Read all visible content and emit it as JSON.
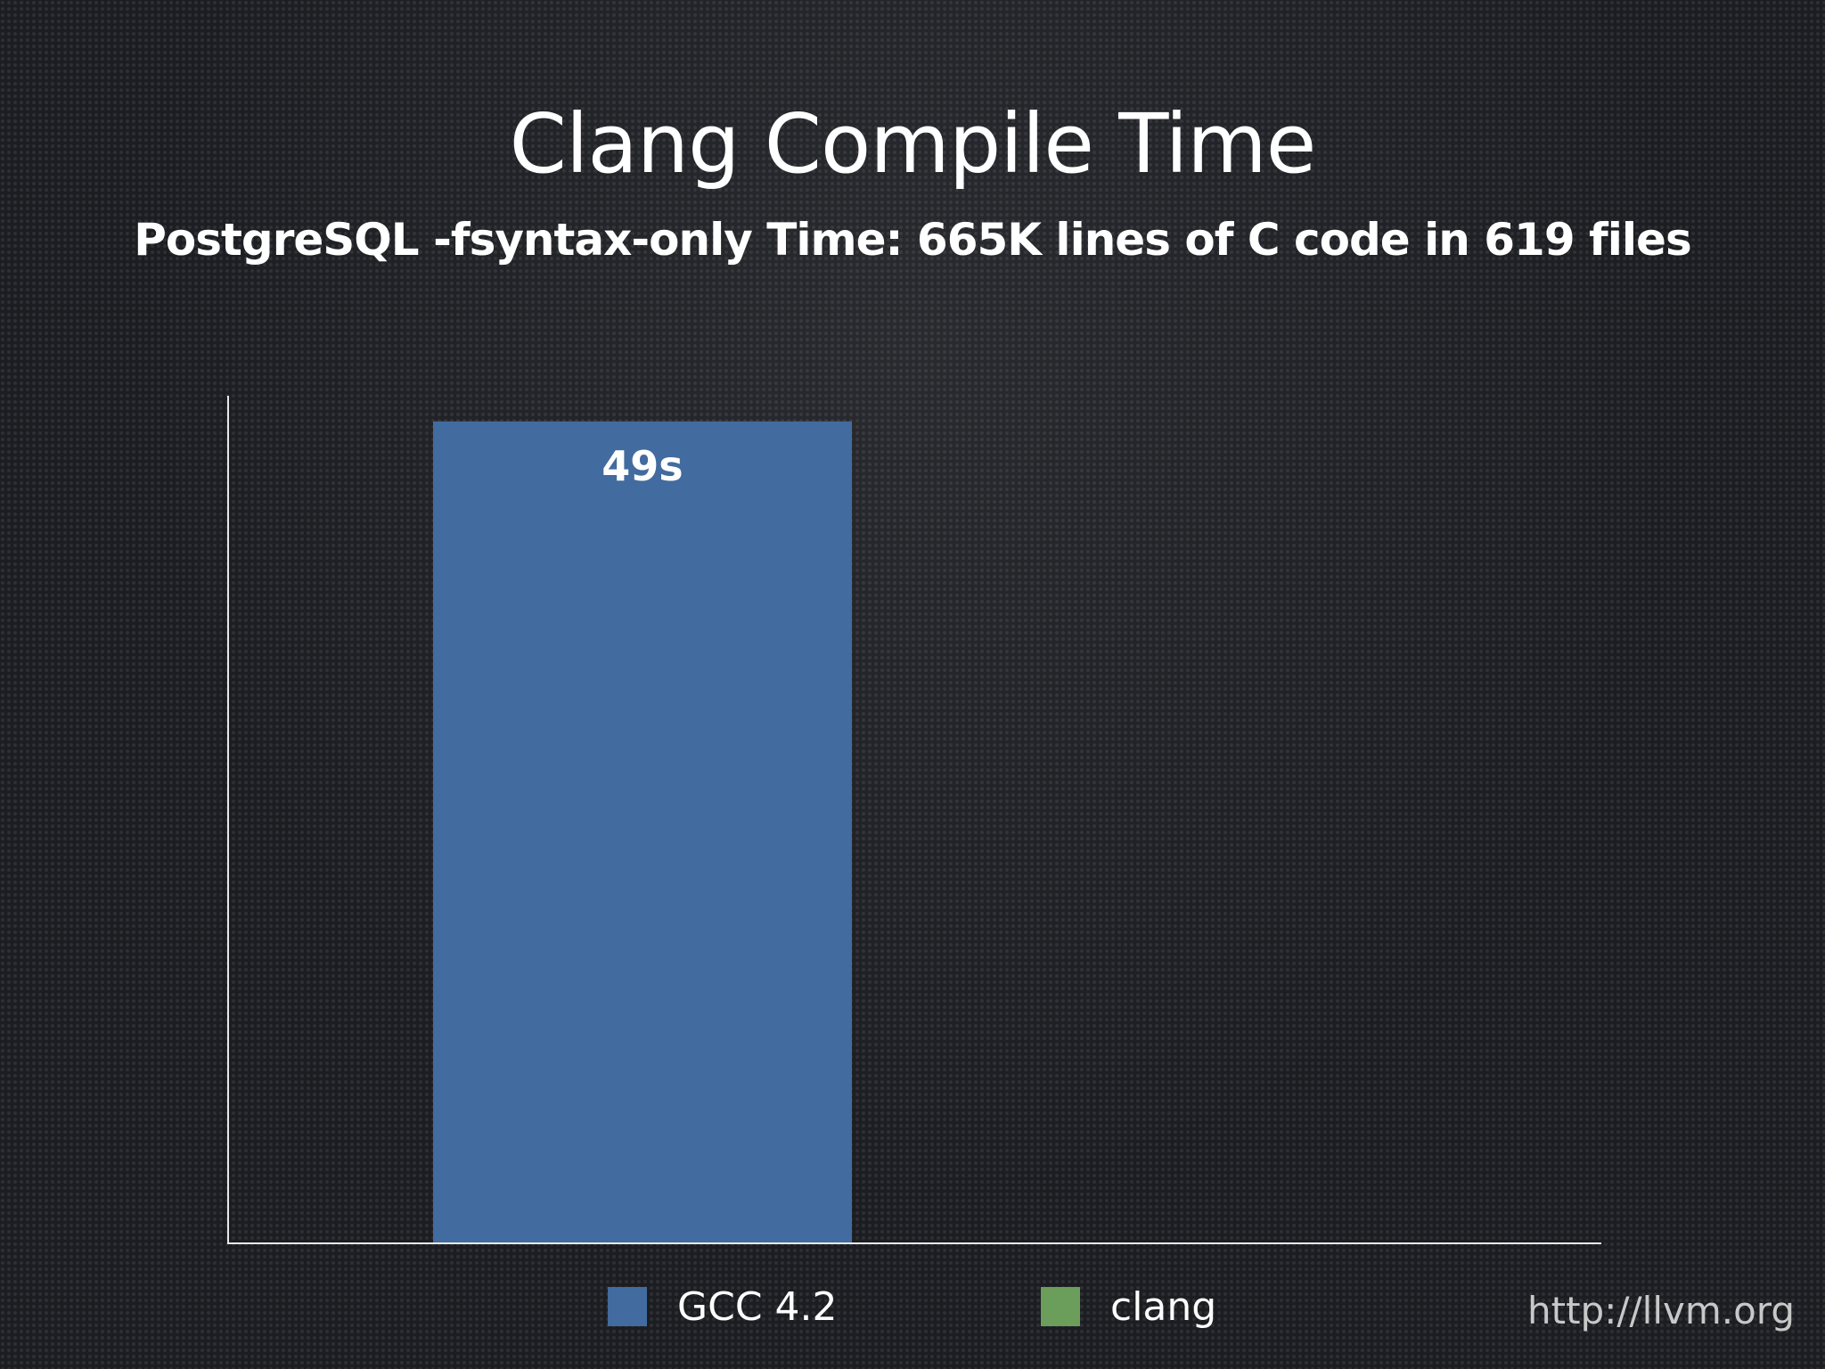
{
  "chart_data": {
    "type": "bar",
    "title": "Clang Compile Time",
    "subtitle": "PostgreSQL -fsyntax-only Time: 665K lines of C code in 619 files",
    "categories": [
      ""
    ],
    "series": [
      {
        "name": "GCC 4.2",
        "values": [
          49
        ],
        "color": "#426b9f",
        "label": "49s"
      },
      {
        "name": "clang",
        "values": [
          null
        ],
        "color": "#6a9e5a",
        "label": ""
      }
    ],
    "ylim": [
      0,
      50
    ],
    "grid": false,
    "legend": "bottom",
    "xlabel": "",
    "ylabel": ""
  },
  "footer": {
    "url": "http://llvm.org"
  }
}
